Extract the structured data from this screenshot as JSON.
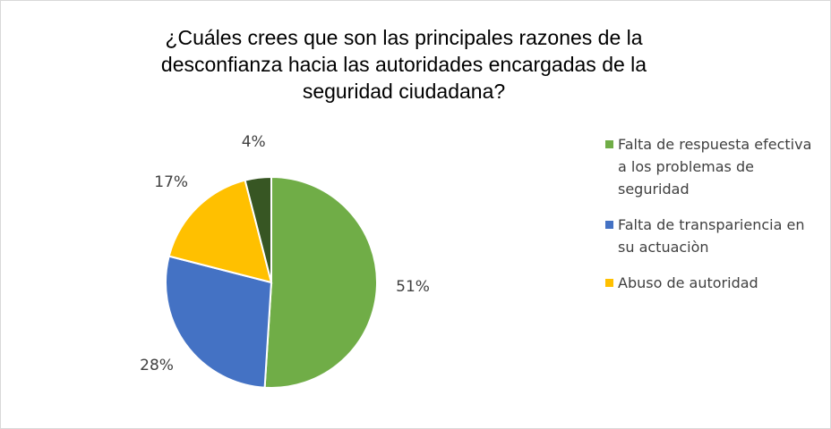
{
  "chart_data": {
    "type": "pie",
    "title": "¿Cuáles crees que son las principales razones de la desconfianza hacia las autoridades encargadas de la seguridad ciudadana?",
    "categories": [
      "Falta de respuesta efectiva a los problemas de seguridad",
      "Falta de transpariencia en su actuaciòn",
      "Abuso de autoridad",
      null
    ],
    "values": [
      51,
      28,
      17,
      4
    ],
    "value_labels": [
      "51%",
      "28%",
      "17%",
      "4%"
    ],
    "colors": [
      "#70ad47",
      "#4472c4",
      "#ffc000",
      "#375623"
    ],
    "legend": "right"
  }
}
